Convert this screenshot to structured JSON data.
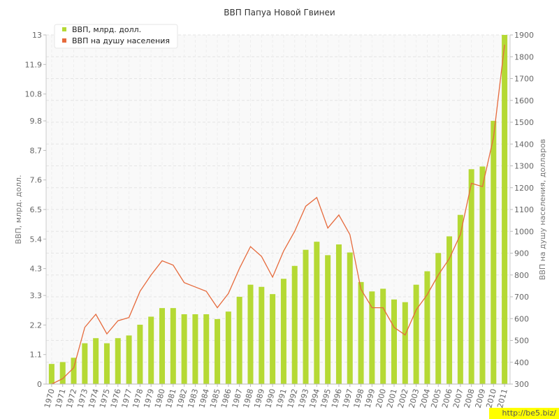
{
  "chart_data": {
    "type": "bar+line",
    "title": "ВВП Папуа Новой Гвинеи",
    "categories": [
      "1970",
      "1971",
      "1972",
      "1973",
      "1974",
      "1975",
      "1976",
      "1977",
      "1978",
      "1979",
      "1980",
      "1981",
      "1982",
      "1983",
      "1984",
      "1985",
      "1986",
      "1987",
      "1988",
      "1989",
      "1990",
      "1991",
      "1992",
      "1993",
      "1994",
      "1995",
      "1996",
      "1997",
      "1998",
      "1999",
      "2000",
      "2001",
      "2002",
      "2003",
      "2004",
      "2005",
      "2006",
      "2007",
      "2008",
      "2009",
      "2010",
      "2011"
    ],
    "series": [
      {
        "name": "ВВП, млрд. долл.",
        "type": "bar",
        "axis": "left",
        "color": "#b5d934",
        "values": [
          0.75,
          0.82,
          0.98,
          1.52,
          1.71,
          1.52,
          1.71,
          1.81,
          2.21,
          2.51,
          2.83,
          2.83,
          2.6,
          2.6,
          2.6,
          2.42,
          2.7,
          3.25,
          3.7,
          3.62,
          3.35,
          3.92,
          4.4,
          5.0,
          5.3,
          4.8,
          5.2,
          4.9,
          3.8,
          3.45,
          3.55,
          3.15,
          3.05,
          3.7,
          4.2,
          4.88,
          5.5,
          6.3,
          8.0,
          8.1,
          9.8,
          13.0
        ]
      },
      {
        "name": "ВВП на душу населения",
        "type": "line",
        "axis": "right",
        "color": "#e66a3c",
        "values": [
          300,
          325,
          375,
          560,
          620,
          530,
          590,
          605,
          725,
          800,
          865,
          845,
          765,
          745,
          725,
          650,
          715,
          830,
          930,
          885,
          790,
          910,
          1000,
          1115,
          1155,
          1015,
          1075,
          985,
          735,
          650,
          650,
          560,
          525,
          640,
          710,
          800,
          875,
          985,
          1220,
          1205,
          1430,
          1855
        ]
      }
    ],
    "y_left": {
      "label": "ВВП, млрд. долл.",
      "ylim": [
        0,
        13
      ],
      "ticks": [
        "0",
        "1.1",
        "2.2",
        "3.3",
        "4.3",
        "5.4",
        "6.5",
        "7.6",
        "8.7",
        "9.8",
        "10.8",
        "11.9",
        "13"
      ]
    },
    "y_right": {
      "label": "ВВП на душу населения, долларов",
      "ylim": [
        300,
        1900
      ],
      "ticks": [
        "300",
        "400",
        "500",
        "600",
        "700",
        "800",
        "900",
        "1000",
        "1100",
        "1200",
        "1300",
        "1400",
        "1500",
        "1600",
        "1700",
        "1800",
        "1900"
      ]
    },
    "legend_position": "top-left",
    "grid": true
  },
  "watermark": "http://be5.biz/"
}
